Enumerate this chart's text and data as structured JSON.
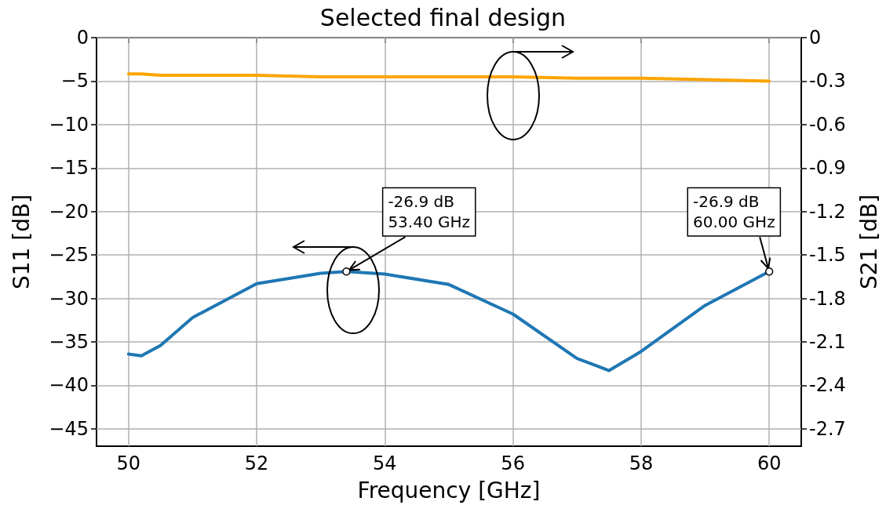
{
  "chart_data": {
    "type": "line",
    "title": "Selected final design",
    "xlabel": "Frequency [GHz]",
    "ylabel": "S11 [dB]",
    "y2label": "S21 [dB]",
    "x": [
      50,
      50.2,
      50.5,
      51,
      52,
      53,
      53.4,
      54,
      55,
      56,
      57,
      57.5,
      58,
      59,
      60
    ],
    "series": [
      {
        "color": "#1f77b4",
        "values": [
          -36.4,
          -36.6,
          -35.4,
          -32.2,
          -28.3,
          -27.1,
          -26.9,
          -27.2,
          -28.4,
          -31.8,
          -36.9,
          -38.3,
          -36.1,
          -30.8,
          -26.9
        ]
      },
      {
        "color": "#ffa500",
        "axis": "y2",
        "values": [
          -0.25,
          -0.25,
          -0.26,
          -0.26,
          -0.26,
          -0.27,
          -0.27,
          -0.27,
          -0.27,
          -0.27,
          -0.28,
          -0.28,
          -0.28,
          -0.29,
          -0.3
        ]
      }
    ],
    "xlim": [
      49.5,
      60.5
    ],
    "xticks": [
      50,
      52,
      54,
      56,
      58,
      60
    ],
    "ylim": [
      -47,
      0
    ],
    "yticks": [
      0,
      {
        "value": -5,
        "label": "−5"
      },
      {
        "value": -10,
        "label": "−10"
      },
      {
        "value": -15,
        "label": "−15"
      },
      {
        "value": -20,
        "label": "−20"
      },
      {
        "value": -25,
        "label": "−25"
      },
      {
        "value": -30,
        "label": "−30"
      },
      {
        "value": -35,
        "label": "−35"
      },
      {
        "value": -40,
        "label": "−40"
      },
      {
        "value": -45,
        "label": "−45"
      }
    ],
    "y2lim": [
      -2.82,
      0
    ],
    "y2ticks": [
      0,
      -0.3,
      -0.6,
      -0.9,
      -1.2,
      -1.5,
      -1.8,
      -2.1,
      -2.4,
      -2.7
    ],
    "grid": true,
    "annotations": [
      {
        "text": "-26.9 dB\n53.40 GHz",
        "x": 53.4,
        "y": -26.9
      },
      {
        "text": "-26.9 dB\n60.00 GHz",
        "x": 60,
        "y": -26.9
      }
    ]
  }
}
